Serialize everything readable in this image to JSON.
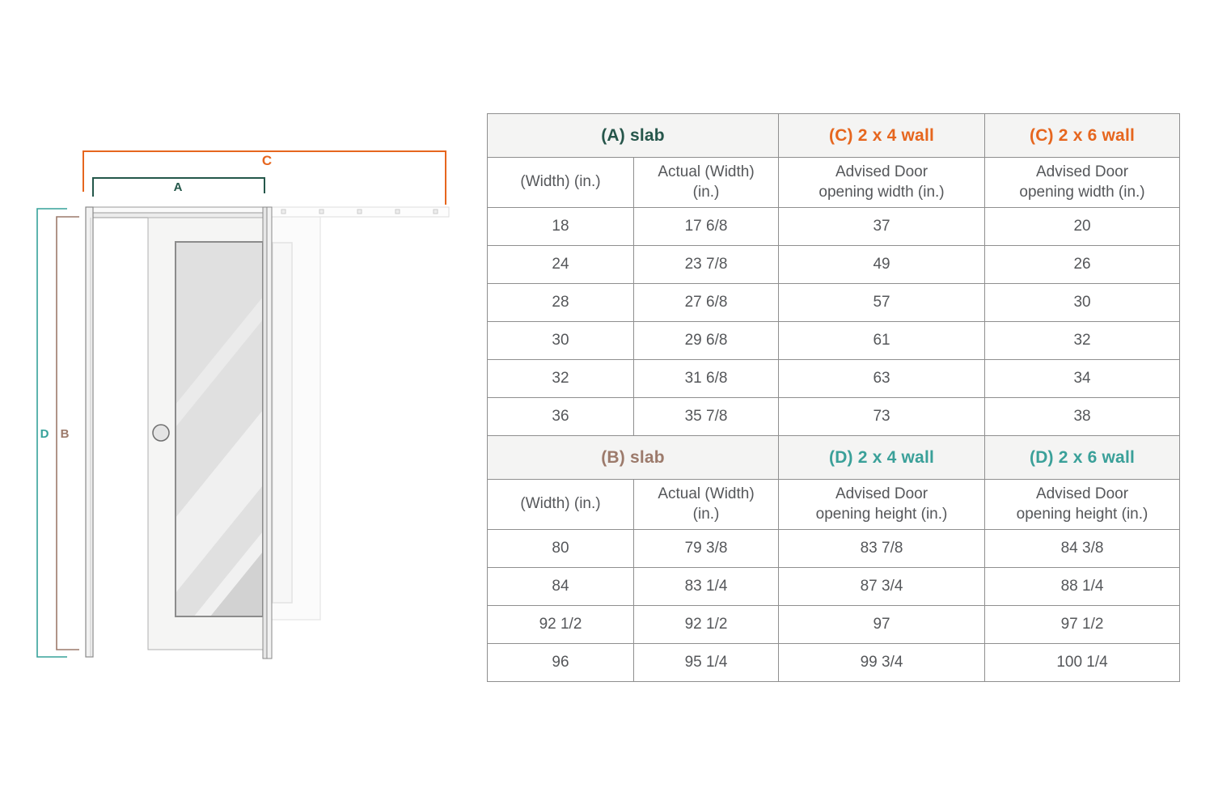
{
  "diagram": {
    "labels": {
      "a": "A",
      "b": "B",
      "c": "C",
      "d": "D"
    },
    "colors": {
      "a": "#24574a",
      "b": "#9c7a6b",
      "c": "#e6661e",
      "d": "#36a29a"
    }
  },
  "table": {
    "text_color": "#55575a",
    "border_color": "#8f8f8f",
    "section_header_bg": "#f4f4f3",
    "sections": [
      {
        "headers": [
          {
            "label": "(A) slab",
            "color": "#26564b"
          },
          {
            "label": "(C) 2 x 4 wall",
            "color": "#e6661e"
          },
          {
            "label": "(C) 2 x 6 wall",
            "color": "#e6661e"
          }
        ],
        "subheaders": [
          "(Width) (in.)",
          "Actual (Width)\n(in.)",
          "Advised Door\nopening width (in.)",
          "Advised Door\nopening width (in.)"
        ],
        "rows": [
          [
            "18",
            "17 6/8",
            "37",
            "20"
          ],
          [
            "24",
            "23 7/8",
            "49",
            "26"
          ],
          [
            "28",
            "27 6/8",
            "57",
            "30"
          ],
          [
            "30",
            "29 6/8",
            "61",
            "32"
          ],
          [
            "32",
            "31 6/8",
            "63",
            "34"
          ],
          [
            "36",
            "35 7/8",
            "73",
            "38"
          ]
        ]
      },
      {
        "headers": [
          {
            "label": "(B) slab",
            "color": "#9c7a6b"
          },
          {
            "label": "(D) 2 x 4 wall",
            "color": "#3aa099"
          },
          {
            "label": "(D) 2 x 6 wall",
            "color": "#3aa099"
          }
        ],
        "subheaders": [
          "(Width) (in.)",
          "Actual (Width)\n(in.)",
          "Advised Door\nopening height (in.)",
          "Advised Door\nopening height (in.)"
        ],
        "rows": [
          [
            "80",
            "79 3/8",
            "83 7/8",
            "84 3/8"
          ],
          [
            "84",
            "83 1/4",
            "87 3/4",
            "88 1/4"
          ],
          [
            "92 1/2",
            "92 1/2",
            "97",
            "97 1/2"
          ],
          [
            "96",
            "95 1/4",
            "99 3/4",
            "100 1/4"
          ]
        ]
      }
    ]
  }
}
